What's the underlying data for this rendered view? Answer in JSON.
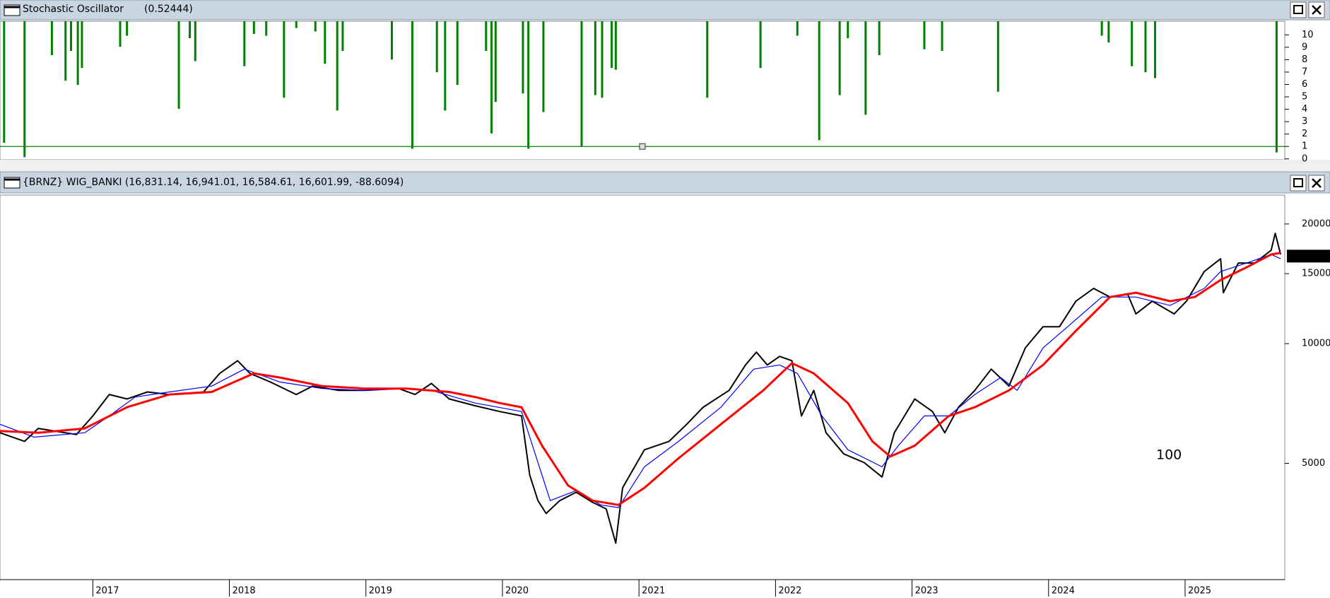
{
  "chart_data": [
    {
      "type": "bar",
      "title": "Stochastic Oscillator",
      "subtitle": "(0.52444)",
      "subtitle_color": "#008000",
      "x": [
        2016.35,
        2016.5,
        2016.7,
        2016.8,
        2016.84,
        2016.89,
        2016.92,
        2017.2,
        2017.25,
        2017.63,
        2017.71,
        2017.75,
        2018.11,
        2018.18,
        2018.27,
        2018.4,
        2018.49,
        2018.63,
        2018.7,
        2018.79,
        2018.83,
        2019.19,
        2019.34,
        2019.52,
        2019.58,
        2019.67,
        2019.88,
        2019.92,
        2019.95,
        2020.15,
        2020.19,
        2020.3,
        2020.58,
        2020.68,
        2020.73,
        2020.8,
        2020.83,
        2021.5,
        2021.89,
        2022.16,
        2022.32,
        2022.47,
        2022.53,
        2022.66,
        2022.76,
        2023.09,
        2023.22,
        2023.63,
        2024.39,
        2024.44,
        2024.61,
        2024.71,
        2024.78,
        2025.67
      ],
      "values": [
        1.3,
        0.14,
        8.36,
        6.3,
        8.7,
        5.96,
        7.33,
        9.04,
        9.93,
        4.04,
        9.73,
        7.88,
        7.47,
        10.07,
        9.93,
        4.93,
        10.55,
        10.27,
        7.67,
        3.9,
        8.7,
        8.01,
        0.82,
        6.99,
        3.9,
        5.96,
        8.7,
        2.05,
        4.59,
        5.27,
        0.82,
        3.77,
        1.03,
        5.14,
        4.93,
        7.33,
        7.19,
        4.93,
        7.33,
        9.93,
        1.51,
        5.14,
        9.73,
        3.56,
        8.36,
        8.84,
        8.7,
        5.41,
        9.93,
        9.38,
        7.47,
        6.99,
        6.51,
        0.52
      ],
      "color": "#008000",
      "xlim": [
        2016.32,
        2025.73
      ],
      "ylim": [
        -0.07,
        11.1
      ],
      "yticks": [
        0,
        1,
        2,
        3,
        4,
        5,
        6,
        7,
        8,
        9,
        10
      ],
      "hline": 1,
      "hline_color": "#008000"
    },
    {
      "type": "line",
      "title": "{BRNZ} WIG_BANKI (16,831.14, 16,941.01, 16,584.61, 16,601.99, -88.6094)",
      "log_scale": true,
      "xlim": [
        2016.32,
        2025.73
      ],
      "ylim": [
        2550,
        23640
      ],
      "xticks": [
        2017,
        2018,
        2019,
        2020,
        2021,
        2022,
        2023,
        2024,
        2025
      ],
      "yticks": [
        5000,
        10000,
        15000,
        20000
      ],
      "last_value": 16601.99,
      "last_value_color": "#ff0000",
      "annotation": "100",
      "annotation_color": "#ff0000",
      "series": [
        {
          "color": "#000000",
          "width": 2,
          "x": [
            2016.32,
            2016.5,
            2016.6,
            2016.88,
            2017.0,
            2017.12,
            2017.25,
            2017.4,
            2017.56,
            2017.81,
            2017.93,
            2018.06,
            2018.15,
            2018.3,
            2018.49,
            2018.61,
            2018.8,
            2018.99,
            2019.24,
            2019.36,
            2019.48,
            2019.61,
            2019.8,
            2019.98,
            2020.14,
            2020.2,
            2020.26,
            2020.32,
            2020.42,
            2020.54,
            2020.66,
            2020.76,
            2020.83,
            2020.88,
            2021.04,
            2021.22,
            2021.35,
            2021.47,
            2021.66,
            2021.78,
            2021.86,
            2021.94,
            2022.03,
            2022.12,
            2022.19,
            2022.28,
            2022.37,
            2022.5,
            2022.65,
            2022.78,
            2022.87,
            2023.02,
            2023.15,
            2023.24,
            2023.34,
            2023.46,
            2023.58,
            2023.71,
            2023.83,
            2023.96,
            2024.08,
            2024.2,
            2024.33,
            2024.45,
            2024.58,
            2024.64,
            2024.76,
            2024.92,
            2025.01,
            2025.14,
            2025.26,
            2025.28,
            2025.39,
            2025.51,
            2025.63,
            2025.66,
            2025.7
          ],
          "values": [
            5970,
            5680,
            6120,
            5910,
            6580,
            7450,
            7260,
            7560,
            7450,
            7560,
            8420,
            9060,
            8420,
            8010,
            7450,
            7820,
            7630,
            7630,
            7710,
            7450,
            7940,
            7260,
            6980,
            6750,
            6580,
            4670,
            4030,
            3740,
            4030,
            4230,
            3990,
            3840,
            3150,
            4340,
            5410,
            5680,
            6270,
            6920,
            7630,
            8840,
            9520,
            8840,
            9290,
            9060,
            6580,
            7630,
            5970,
            5280,
            5020,
            4620,
            5970,
            7260,
            6750,
            5970,
            6920,
            7630,
            8630,
            7820,
            9760,
            11030,
            11030,
            12790,
            13770,
            13100,
            13300,
            11880,
            12790,
            11880,
            12790,
            15180,
            16350,
            13430,
            15950,
            15950,
            17170,
            18950,
            16760
          ]
        },
        {
          "color": "#0000ff",
          "width": 1.2,
          "x": [
            2016.32,
            2016.57,
            2016.94,
            2017.12,
            2017.31,
            2017.56,
            2017.87,
            2018.11,
            2018.37,
            2018.68,
            2018.99,
            2019.3,
            2019.48,
            2019.8,
            2020.14,
            2020.23,
            2020.35,
            2020.54,
            2020.72,
            2020.85,
            2021.04,
            2021.29,
            2021.6,
            2021.84,
            2022.03,
            2022.16,
            2022.34,
            2022.53,
            2022.78,
            2022.9,
            2023.09,
            2023.27,
            2023.46,
            2023.65,
            2023.77,
            2023.96,
            2024.14,
            2024.39,
            2024.64,
            2024.89,
            2025.14,
            2025.26,
            2025.45,
            2025.63,
            2025.7
          ],
          "values": [
            6270,
            5820,
            5970,
            6580,
            7340,
            7560,
            7820,
            8630,
            8010,
            7710,
            7630,
            7710,
            7630,
            7090,
            6750,
            5410,
            4030,
            4270,
            3930,
            3870,
            4900,
            5680,
            6920,
            8630,
            8840,
            8420,
            6580,
            5410,
            4900,
            5540,
            6580,
            6580,
            7450,
            8220,
            7630,
            9760,
            11030,
            13100,
            13100,
            12480,
            13770,
            15180,
            15950,
            16760,
            16350
          ]
        },
        {
          "color": "#ff0000",
          "width": 3,
          "x": [
            2016.32,
            2016.6,
            2016.94,
            2017.25,
            2017.56,
            2017.87,
            2018.18,
            2018.37,
            2018.68,
            2018.99,
            2019.3,
            2019.61,
            2019.8,
            2019.98,
            2020.14,
            2020.29,
            2020.48,
            2020.66,
            2020.85,
            2021.04,
            2021.29,
            2021.6,
            2021.91,
            2022.12,
            2022.28,
            2022.53,
            2022.71,
            2022.84,
            2023.02,
            2023.27,
            2023.46,
            2023.71,
            2023.96,
            2024.2,
            2024.45,
            2024.64,
            2024.89,
            2025.07,
            2025.26,
            2025.45,
            2025.63,
            2025.7
          ],
          "values": [
            6030,
            5970,
            6120,
            6920,
            7450,
            7560,
            8420,
            8220,
            7820,
            7710,
            7710,
            7560,
            7340,
            7090,
            6920,
            5540,
            4400,
            4030,
            3930,
            4340,
            5150,
            6270,
            7630,
            8930,
            8420,
            7090,
            5680,
            5200,
            5540,
            6580,
            6920,
            7630,
            8840,
            10770,
            13100,
            13430,
            12790,
            13100,
            14460,
            15560,
            16760,
            16920
          ]
        }
      ]
    }
  ]
}
